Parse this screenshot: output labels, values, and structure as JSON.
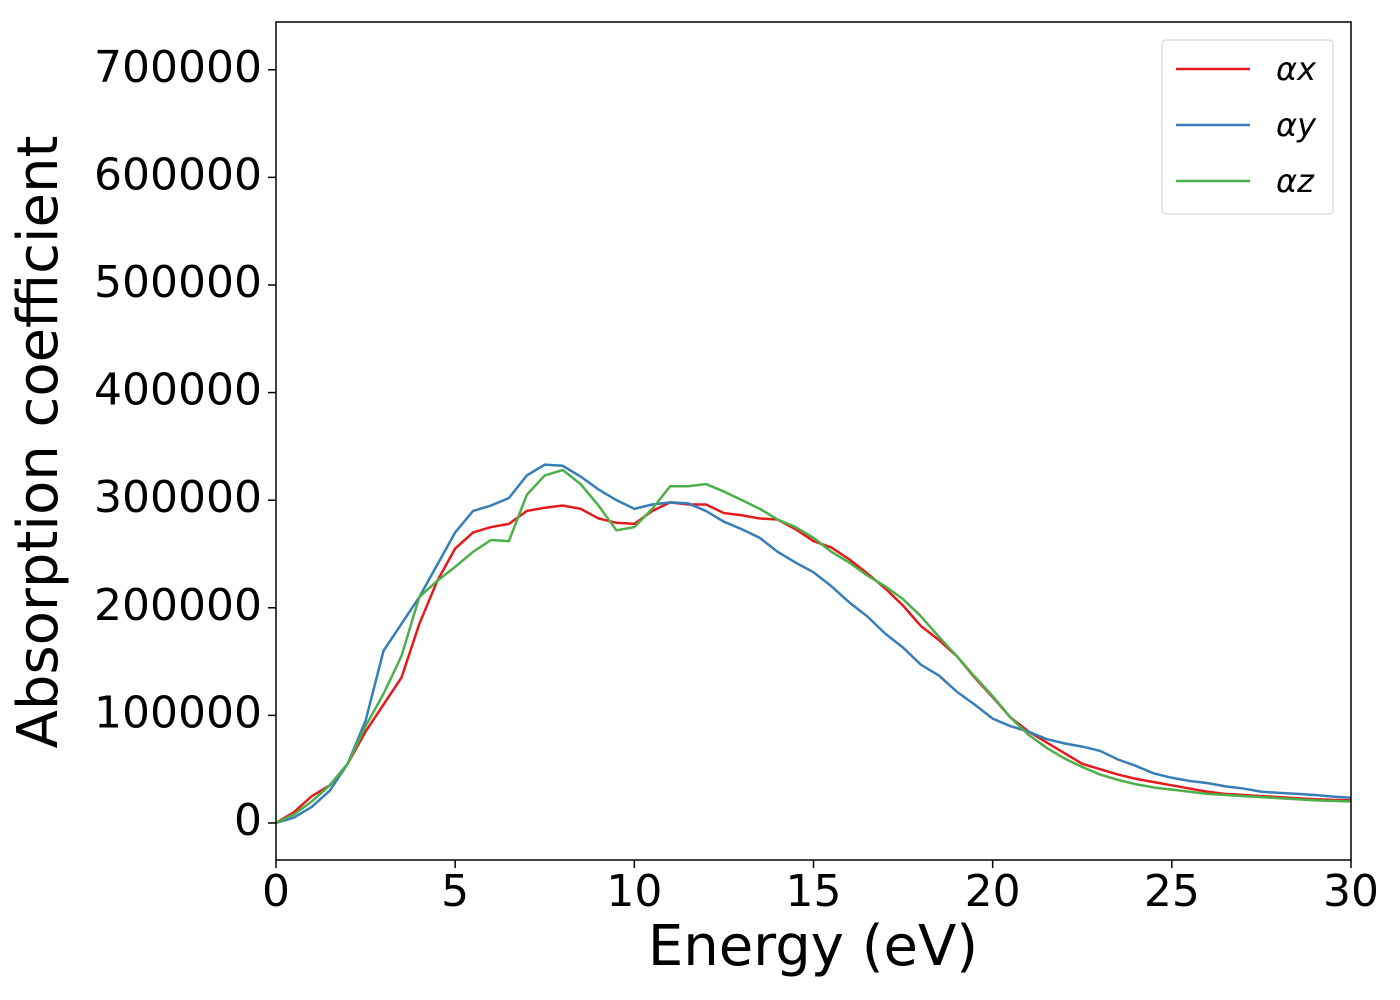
{
  "chart_data": {
    "type": "line",
    "xlabel": "Energy (eV)",
    "ylabel": "Absorption coefficient",
    "x": [
      0,
      0.5,
      1,
      1.5,
      2,
      2.5,
      3,
      3.5,
      4,
      4.5,
      5,
      5.5,
      6,
      6.5,
      7,
      7.5,
      8,
      8.5,
      9,
      9.5,
      10,
      10.5,
      11,
      11.5,
      12,
      12.5,
      13,
      13.5,
      14,
      14.5,
      15,
      15.5,
      16,
      16.5,
      17,
      17.5,
      18,
      18.5,
      19,
      19.5,
      20,
      20.5,
      21,
      21.5,
      22,
      22.5,
      23,
      23.5,
      24,
      24.5,
      25,
      25.5,
      26,
      26.5,
      27,
      27.5,
      28,
      28.5,
      29,
      29.5,
      30
    ],
    "series": [
      {
        "name": "αx",
        "color": "#e41a1c",
        "values": [
          0,
          10000,
          25000,
          35000,
          55000,
          85000,
          110000,
          135000,
          185000,
          225000,
          255000,
          270000,
          275000,
          278000,
          290000,
          293000,
          295000,
          292000,
          283000,
          279000,
          278000,
          290000,
          298000,
          296000,
          296000,
          288000,
          286000,
          283000,
          282000,
          273000,
          262000,
          256000,
          245000,
          232000,
          218000,
          202000,
          183000,
          170000,
          155000,
          135000,
          117000,
          98000,
          85000,
          75000,
          65000,
          55000,
          50000,
          45000,
          41000,
          38000,
          35000,
          32000,
          29000,
          27000,
          26000,
          25000,
          24000,
          23000,
          22000,
          21500,
          21000
        ]
      },
      {
        "name": "αy",
        "color": "#377eb8",
        "values": [
          0,
          5000,
          15000,
          30000,
          55000,
          95000,
          160000,
          185000,
          210000,
          240000,
          270000,
          290000,
          295000,
          302000,
          323000,
          333000,
          332000,
          322000,
          310000,
          300000,
          292000,
          296000,
          298000,
          297000,
          290000,
          280000,
          273000,
          265000,
          252000,
          242000,
          233000,
          220000,
          205000,
          192000,
          176000,
          163000,
          147000,
          137000,
          122000,
          110000,
          97000,
          90000,
          85000,
          78000,
          74000,
          71000,
          67000,
          59000,
          53000,
          46000,
          42000,
          39000,
          37000,
          34000,
          32000,
          29000,
          28000,
          27000,
          26000,
          24500,
          23500
        ]
      },
      {
        "name": "αz",
        "color": "#4daf4a",
        "values": [
          0,
          8000,
          20000,
          35000,
          55000,
          90000,
          120000,
          155000,
          210000,
          225000,
          238000,
          252000,
          263000,
          262000,
          305000,
          323000,
          328000,
          315000,
          295000,
          272000,
          275000,
          292000,
          313000,
          313000,
          315000,
          308000,
          300000,
          292000,
          282000,
          275000,
          265000,
          252000,
          242000,
          230000,
          220000,
          208000,
          192000,
          173000,
          155000,
          136000,
          118000,
          98000,
          82000,
          70000,
          60000,
          52000,
          45000,
          40000,
          36000,
          33000,
          31000,
          29000,
          27000,
          26000,
          25000,
          24000,
          23000,
          22000,
          21000,
          20500,
          20000
        ]
      }
    ],
    "xlim": [
      0,
      30
    ],
    "xticks": [
      0,
      5,
      10,
      15,
      20,
      25,
      30
    ],
    "ylim": [
      -34400,
      744400
    ],
    "yticks": [
      0,
      100000,
      200000,
      300000,
      400000,
      500000,
      600000,
      700000
    ],
    "grid": false,
    "legend": "upper right"
  }
}
